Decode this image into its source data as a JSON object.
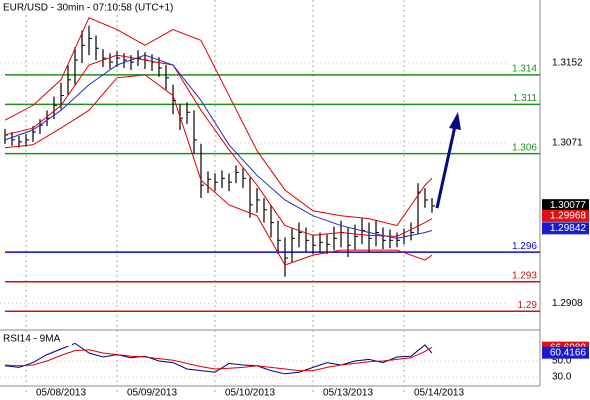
{
  "chart_data": [
    {
      "type": "ohlc",
      "title": "EUR/USD - 30min - 07:10:58 (UTC+1)",
      "bar_color": "#000000",
      "ylim": [
        1.2883,
        1.3216
      ],
      "yticks": [
        1.3152,
        1.3071,
        1.2908
      ],
      "grid": true,
      "xticks": [
        {
          "value": 3,
          "label": "05/08/2013"
        },
        {
          "value": 16,
          "label": "05/09/2013"
        },
        {
          "value": 30,
          "label": "05/10/2013"
        },
        {
          "value": 44,
          "label": "05/13/2013"
        },
        {
          "value": 57,
          "label": "05/14/2013"
        }
      ],
      "high": [
        1.3085,
        1.3082,
        1.3078,
        1.308,
        1.3088,
        1.3095,
        1.3104,
        1.3118,
        1.3132,
        1.315,
        1.3168,
        1.3185,
        1.319,
        1.318,
        1.3166,
        1.3162,
        1.3164,
        1.3162,
        1.316,
        1.3165,
        1.3163,
        1.3161,
        1.3158,
        1.315,
        1.313,
        1.311,
        1.3112,
        1.3104,
        1.307,
        1.3042,
        1.304,
        1.3043,
        1.304,
        1.3048,
        1.3045,
        1.3036,
        1.3025,
        1.3015,
        1.3008,
        1.2992,
        1.2975,
        1.2985,
        1.299,
        1.2985,
        1.2978,
        1.298,
        1.2978,
        1.2986,
        1.2992,
        1.2985,
        1.2988,
        1.2995,
        1.299,
        1.2992,
        1.2985,
        1.2983,
        1.298,
        1.2984,
        1.299,
        1.303,
        1.3025,
        1.3015
      ],
      "low": [
        1.307,
        1.3068,
        1.3066,
        1.3067,
        1.3072,
        1.308,
        1.3088,
        1.3095,
        1.3105,
        1.312,
        1.313,
        1.3152,
        1.316,
        1.3155,
        1.3148,
        1.3146,
        1.3148,
        1.3147,
        1.3145,
        1.3149,
        1.3146,
        1.3144,
        1.3138,
        1.3125,
        1.31,
        1.3084,
        1.309,
        1.306,
        1.3015,
        1.302,
        1.3022,
        1.3025,
        1.3022,
        1.303,
        1.3025,
        1.2995,
        1.3,
        1.299,
        1.2975,
        1.2958,
        1.2935,
        1.295,
        1.2965,
        1.296,
        1.2958,
        1.296,
        1.2958,
        1.2962,
        1.2965,
        1.2955,
        1.2962,
        1.2968,
        1.296,
        1.2966,
        1.2963,
        1.2964,
        1.2965,
        1.2968,
        1.2972,
        1.2978,
        1.3005,
        1.3
      ],
      "close": [
        1.3079,
        1.3074,
        1.3072,
        1.3074,
        1.3082,
        1.3089,
        1.3096,
        1.3109,
        1.3119,
        1.3135,
        1.3155,
        1.317,
        1.3177,
        1.3167,
        1.3157,
        1.3153,
        1.3157,
        1.3155,
        1.3153,
        1.3157,
        1.3155,
        1.3153,
        1.3147,
        1.3137,
        1.3114,
        1.3096,
        1.3102,
        1.3074,
        1.3028,
        1.3034,
        1.3031,
        1.3035,
        1.3031,
        1.3041,
        1.3035,
        1.3008,
        1.3013,
        1.3003,
        1.299,
        1.2972,
        1.2954,
        1.2974,
        1.298,
        1.2972,
        1.2967,
        1.297,
        1.2968,
        1.2974,
        1.298,
        1.2967,
        1.2976,
        1.2982,
        1.2974,
        1.298,
        1.2972,
        1.2972,
        1.2972,
        1.2976,
        1.298,
        1.3021,
        1.3013,
        1.3007
      ],
      "lines": [
        {
          "color": "#e00000",
          "x": [
            0,
            4,
            8,
            12,
            16,
            20,
            24,
            28,
            32,
            36,
            40,
            44,
            48,
            52,
            56,
            60,
            61
          ],
          "values": [
            1.3094,
            1.3109,
            1.3135,
            1.3198,
            1.3186,
            1.317,
            1.3186,
            1.3175,
            1.3119,
            1.3063,
            1.3023,
            1.3002,
            1.2997,
            1.2994,
            1.2987,
            1.3028,
            1.3035
          ]
        },
        {
          "color": "#e00000",
          "x": [
            0,
            4,
            8,
            12,
            16,
            20,
            24,
            28,
            32,
            36,
            40,
            44,
            48,
            52,
            56,
            60,
            61
          ],
          "values": [
            1.3066,
            1.3069,
            1.3086,
            1.3104,
            1.3137,
            1.314,
            1.3119,
            1.3033,
            1.3008,
            1.2997,
            1.2947,
            1.2957,
            1.2962,
            1.2962,
            1.2962,
            1.2952,
            1.2957
          ]
        },
        {
          "color": "#e00000",
          "x": [
            0,
            4,
            8,
            12,
            16,
            20,
            24,
            28,
            32,
            36,
            40,
            44,
            48,
            52,
            56,
            60,
            61
          ],
          "values": [
            1.3079,
            1.3086,
            1.3109,
            1.315,
            1.316,
            1.3155,
            1.315,
            1.3104,
            1.3064,
            1.3028,
            1.2987,
            1.2977,
            1.298,
            1.2977,
            1.2976,
            1.299,
            1.2994
          ]
        },
        {
          "color": "#2030c0",
          "x": [
            0,
            4,
            8,
            12,
            16,
            20,
            24,
            28,
            32,
            36,
            40,
            44,
            48,
            52,
            56,
            60,
            61
          ],
          "values": [
            1.3074,
            1.3084,
            1.3104,
            1.313,
            1.315,
            1.316,
            1.315,
            1.3114,
            1.3069,
            1.3038,
            1.3013,
            1.2997,
            1.2987,
            1.298,
            1.2974,
            1.298,
            1.2982
          ]
        }
      ],
      "levels": [
        {
          "value": 1.314,
          "color": "#1f8f1f"
        },
        {
          "value": 1.311,
          "color": "#1f8f1f"
        },
        {
          "value": 1.306,
          "color": "#1f8f1f"
        },
        {
          "value": 1.296,
          "color": "#0a0ad0"
        },
        {
          "value": 1.293,
          "color": "#d01010"
        },
        {
          "value": 1.29,
          "color": "#d01010"
        }
      ],
      "tags": [
        {
          "value": 1.30077,
          "color": "#000000"
        },
        {
          "value": 1.29968,
          "color": "#e01010"
        },
        {
          "value": 1.29842,
          "color": "#1a1ad0"
        }
      ]
    },
    {
      "type": "line",
      "label": "RSI14 - 9MA",
      "ylim": [
        20,
        85
      ],
      "yticks": [
        {
          "value": 50,
          "label": "50.0"
        },
        {
          "value": 30,
          "label": "30.0"
        }
      ],
      "x": [
        0,
        2,
        4,
        6,
        8,
        10,
        12,
        14,
        16,
        18,
        20,
        22,
        24,
        26,
        28,
        30,
        32,
        34,
        36,
        38,
        40,
        42,
        44,
        46,
        48,
        50,
        52,
        54,
        56,
        58,
        60,
        61
      ],
      "series": [
        {
          "color": "#000080",
          "values": [
            44,
            42,
            48,
            58,
            65,
            72,
            60,
            55,
            58,
            54,
            56,
            50,
            48,
            40,
            38,
            36,
            47,
            45,
            44,
            38,
            34,
            36,
            42,
            48,
            45,
            50,
            52,
            48,
            55,
            56,
            70,
            60
          ]
        },
        {
          "color": "#e00000",
          "values": [
            45,
            44,
            45,
            50,
            57,
            63,
            64,
            60,
            58,
            56,
            55,
            53,
            51,
            47,
            43,
            40,
            41,
            42,
            44,
            42,
            40,
            38,
            38,
            42,
            45,
            47,
            49,
            50,
            52,
            54,
            62,
            67
          ]
        }
      ],
      "tags": [
        {
          "value": 66.6989,
          "color": "#e01010"
        },
        {
          "value": 60.4166,
          "color": "#1a1ad0"
        }
      ]
    }
  ]
}
